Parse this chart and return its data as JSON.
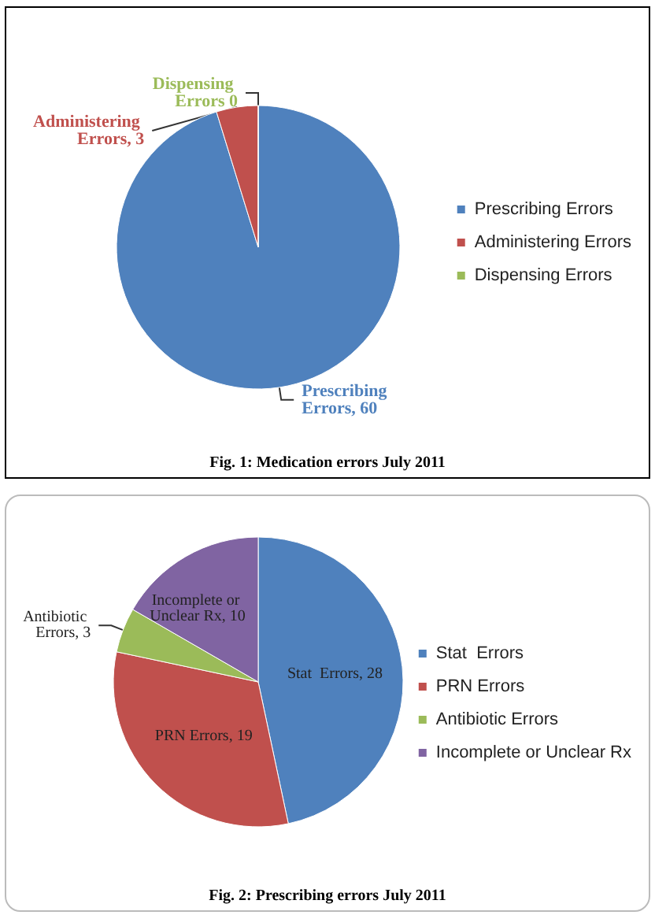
{
  "chart_data": [
    {
      "type": "pie",
      "categories": [
        "Prescribing Errors",
        "Administering Errors",
        "Dispensing Errors"
      ],
      "values": [
        60,
        3,
        0
      ],
      "colors": [
        "#4f81bd",
        "#c0504d",
        "#9bbb59"
      ],
      "value_labels": [
        "Prescribing Errors, 60",
        "Administering Errors, 3",
        "Dispensing Errors 0"
      ],
      "legend": "right",
      "annotations": [
        "Fig. 1: Medication errors July 2011"
      ]
    },
    {
      "type": "pie",
      "categories": [
        "Stat  Errors",
        "PRN Errors",
        "Antibiotic Errors",
        "Incomplete or Unclear Rx"
      ],
      "values": [
        28,
        19,
        3,
        10
      ],
      "colors": [
        "#4f81bd",
        "#c0504d",
        "#9bbb59",
        "#8064a2"
      ],
      "value_labels": [
        "Stat  Errors, 28",
        "PRN Errors, 19",
        "Antibiotic Errors, 3",
        "Incomplete or Unclear Rx, 10"
      ],
      "legend": "right",
      "annotations": [
        "Fig. 2: Prescribing errors July 2011"
      ]
    }
  ]
}
